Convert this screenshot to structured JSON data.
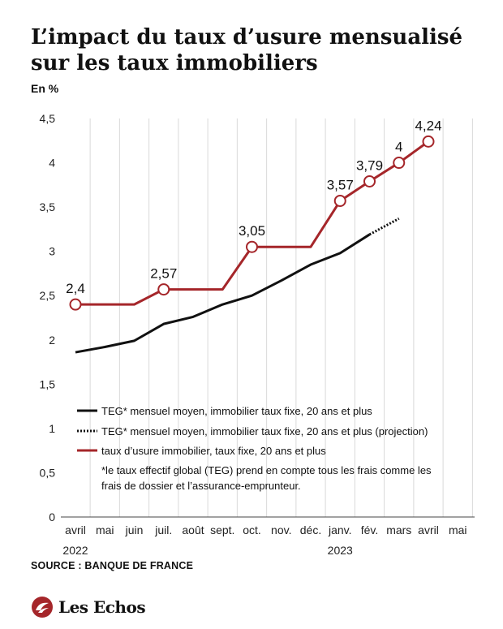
{
  "header": {
    "title": "L’impact du taux d’usure mensualisé sur les taux immobiliers",
    "unit": "En %"
  },
  "footer": {
    "source": "SOURCE : BANQUE DE FRANCE",
    "brand": "Les Echos"
  },
  "colors": {
    "red": "#a5262a",
    "black": "#111111",
    "grid": "#d9d9d9"
  },
  "chart_data": {
    "type": "line",
    "title": "L’impact du taux d’usure mensualisé sur les taux immobiliers",
    "ylabel": "En %",
    "ylim": [
      0,
      4.5
    ],
    "yticks": [
      "0",
      "0,5",
      "1",
      "1,5",
      "2",
      "2,5",
      "3",
      "3,5",
      "4",
      "4,5"
    ],
    "categories": [
      "avril",
      "mai",
      "juin",
      "juil.",
      "août",
      "sept.",
      "oct.",
      "nov.",
      "déc.",
      "janv.",
      "fév.",
      "mars",
      "avril",
      "mai"
    ],
    "year_labels": [
      {
        "index": 0,
        "text": "2022"
      },
      {
        "index": 9,
        "text": "2023"
      }
    ],
    "grid": "vertical",
    "legend_placement": "inside-bottom",
    "series": [
      {
        "name": "TEG* mensuel moyen, immobilier taux fixe, 20 ans et plus",
        "style": "solid",
        "color": "#111111",
        "points": [
          [
            0,
            1.86
          ],
          [
            1,
            1.92
          ],
          [
            2,
            1.99
          ],
          [
            3,
            2.18
          ],
          [
            4,
            2.26
          ],
          [
            5,
            2.4
          ],
          [
            6,
            2.5
          ],
          [
            7,
            2.67
          ],
          [
            8,
            2.85
          ],
          [
            9,
            2.98
          ],
          [
            10,
            3.19
          ]
        ]
      },
      {
        "name": "TEG* mensuel moyen, immobilier taux fixe, 20 ans et plus (projection)",
        "style": "dotted",
        "color": "#111111",
        "points": [
          [
            10,
            3.19
          ],
          [
            11,
            3.37
          ]
        ]
      },
      {
        "name": "taux d’usure immobilier, taux fixe, 20 ans et plus",
        "style": "step",
        "color": "#a5262a",
        "points": [
          [
            0,
            2.4
          ],
          [
            1,
            2.4
          ],
          [
            2,
            2.4
          ],
          [
            3,
            2.57
          ],
          [
            4,
            2.57
          ],
          [
            5,
            2.57
          ],
          [
            6,
            3.05
          ],
          [
            7,
            3.05
          ],
          [
            8,
            3.05
          ],
          [
            9,
            3.57
          ],
          [
            10,
            3.79
          ],
          [
            11,
            4.0
          ],
          [
            12,
            4.24
          ]
        ],
        "labeled": [
          {
            "index": 0,
            "value": 2.4,
            "label": "2,4"
          },
          {
            "index": 3,
            "value": 2.57,
            "label": "2,57"
          },
          {
            "index": 6,
            "value": 3.05,
            "label": "3,05"
          },
          {
            "index": 9,
            "value": 3.57,
            "label": "3,57"
          },
          {
            "index": 10,
            "value": 3.79,
            "label": "3,79"
          },
          {
            "index": 11,
            "value": 4.0,
            "label": "4"
          },
          {
            "index": 12,
            "value": 4.24,
            "label": "4,24"
          }
        ]
      }
    ],
    "footnote": [
      "*le taux effectif global (TEG) prend en compte tous les frais comme les",
      "frais de dossier et l’assurance-emprunteur."
    ]
  }
}
